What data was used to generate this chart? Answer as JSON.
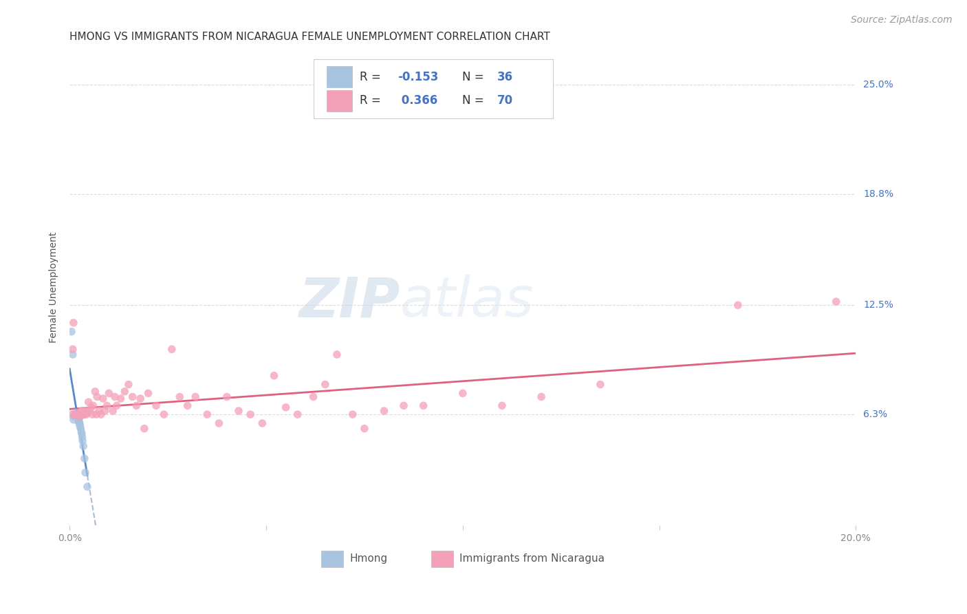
{
  "title": "HMONG VS IMMIGRANTS FROM NICARAGUA FEMALE UNEMPLOYMENT CORRELATION CHART",
  "source": "Source: ZipAtlas.com",
  "ylabel": "Female Unemployment",
  "watermark_zip": "ZIP",
  "watermark_atlas": "atlas",
  "legend1_label": "Hmong",
  "legend2_label": "Immigrants from Nicaragua",
  "R1": -0.153,
  "N1": 36,
  "R2": 0.366,
  "N2": 70,
  "color1": "#a8c4e0",
  "color2": "#f4a0b8",
  "line1_color": "#5588cc",
  "line2_color": "#e06080",
  "dashed_line_color": "#aabbd4",
  "ytick_labels": [
    "6.3%",
    "12.5%",
    "18.8%",
    "25.0%"
  ],
  "ytick_values": [
    0.063,
    0.125,
    0.188,
    0.25
  ],
  "xlim": [
    0.0,
    0.2
  ],
  "ylim": [
    0.0,
    0.27
  ],
  "background": "#ffffff",
  "grid_color": "#cccccc",
  "hmong_x": [
    0.0005,
    0.0008,
    0.001,
    0.001,
    0.0012,
    0.0013,
    0.0014,
    0.0015,
    0.0016,
    0.0016,
    0.0017,
    0.0018,
    0.0018,
    0.0019,
    0.002,
    0.002,
    0.0021,
    0.0021,
    0.0022,
    0.0022,
    0.0023,
    0.0023,
    0.0024,
    0.0025,
    0.0025,
    0.0026,
    0.0027,
    0.0028,
    0.003,
    0.0031,
    0.0032,
    0.0033,
    0.0035,
    0.0038,
    0.004,
    0.0045
  ],
  "hmong_y": [
    0.11,
    0.097,
    0.062,
    0.06,
    0.063,
    0.063,
    0.062,
    0.063,
    0.063,
    0.064,
    0.062,
    0.063,
    0.062,
    0.062,
    0.063,
    0.062,
    0.062,
    0.061,
    0.061,
    0.06,
    0.06,
    0.059,
    0.059,
    0.058,
    0.058,
    0.057,
    0.056,
    0.055,
    0.053,
    0.052,
    0.05,
    0.048,
    0.045,
    0.038,
    0.03,
    0.022
  ],
  "nica_x": [
    0.0005,
    0.0008,
    0.001,
    0.0015,
    0.0018,
    0.002,
    0.0022,
    0.0025,
    0.0028,
    0.003,
    0.0033,
    0.0035,
    0.0038,
    0.004,
    0.0043,
    0.0045,
    0.0048,
    0.005,
    0.0055,
    0.0058,
    0.006,
    0.0065,
    0.0068,
    0.007,
    0.0075,
    0.008,
    0.0085,
    0.009,
    0.0095,
    0.01,
    0.011,
    0.0115,
    0.012,
    0.013,
    0.014,
    0.015,
    0.016,
    0.017,
    0.018,
    0.019,
    0.02,
    0.022,
    0.024,
    0.026,
    0.028,
    0.03,
    0.032,
    0.035,
    0.038,
    0.04,
    0.043,
    0.046,
    0.049,
    0.052,
    0.055,
    0.058,
    0.062,
    0.065,
    0.068,
    0.072,
    0.075,
    0.08,
    0.085,
    0.09,
    0.1,
    0.11,
    0.12,
    0.135,
    0.17,
    0.195
  ],
  "nica_y": [
    0.063,
    0.1,
    0.115,
    0.063,
    0.063,
    0.062,
    0.063,
    0.063,
    0.062,
    0.065,
    0.065,
    0.063,
    0.063,
    0.065,
    0.063,
    0.064,
    0.07,
    0.065,
    0.067,
    0.063,
    0.068,
    0.076,
    0.063,
    0.073,
    0.065,
    0.063,
    0.072,
    0.065,
    0.068,
    0.075,
    0.065,
    0.073,
    0.068,
    0.072,
    0.076,
    0.08,
    0.073,
    0.068,
    0.072,
    0.055,
    0.075,
    0.068,
    0.063,
    0.1,
    0.073,
    0.068,
    0.073,
    0.063,
    0.058,
    0.073,
    0.065,
    0.063,
    0.058,
    0.085,
    0.067,
    0.063,
    0.073,
    0.08,
    0.097,
    0.063,
    0.055,
    0.065,
    0.068,
    0.068,
    0.075,
    0.068,
    0.073,
    0.08,
    0.125,
    0.127
  ],
  "title_fontsize": 11,
  "axis_label_fontsize": 10,
  "tick_fontsize": 10,
  "source_fontsize": 10
}
